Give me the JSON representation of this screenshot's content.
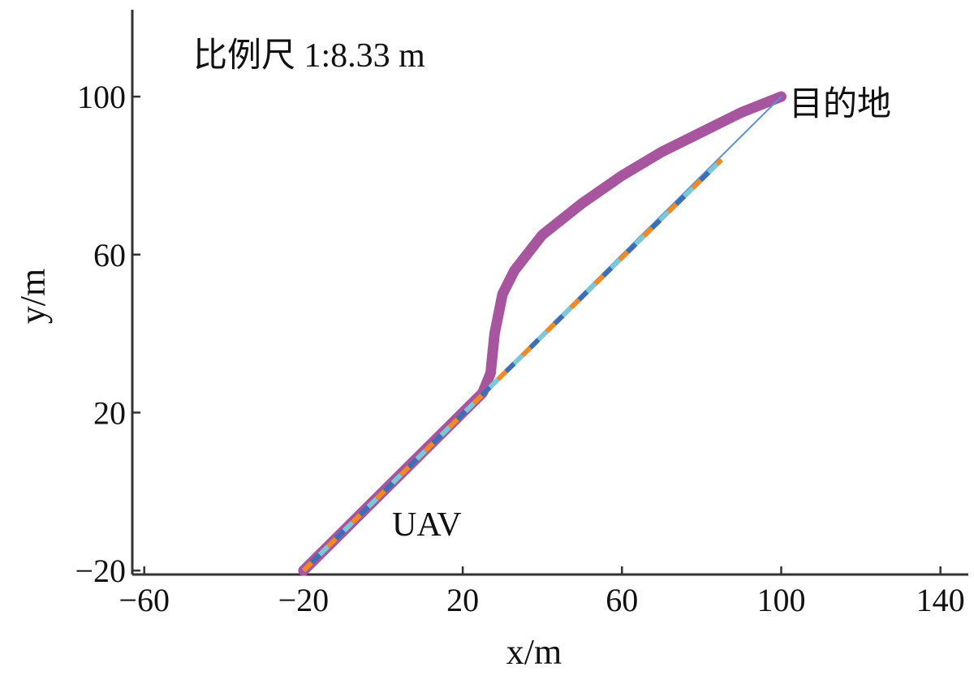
{
  "chart_data": {
    "type": "line",
    "xlabel": "x/m",
    "ylabel": "y/m",
    "xlim": [
      -63,
      147
    ],
    "ylim": [
      -21,
      122
    ],
    "xticks": [
      -60,
      -20,
      20,
      60,
      100,
      140
    ],
    "yticks": [
      -20,
      20,
      60,
      100
    ],
    "grid": false,
    "annotations": {
      "scale": "比例尺 1:8.33 m",
      "start_label": "UAV",
      "end_label": "目的地"
    },
    "series": [
      {
        "color": "#a855a0",
        "style": "thick",
        "x": [
          -20,
          -10,
          0,
          10,
          20,
          25,
          27,
          28,
          30,
          33,
          40,
          50,
          60,
          70,
          80,
          90,
          100
        ],
        "y": [
          -20,
          -10,
          0,
          10,
          20,
          25,
          30,
          40,
          50,
          56,
          65,
          73,
          80,
          86,
          91,
          96,
          100
        ]
      },
      {
        "colors": [
          "#f08a24",
          "#3c6fb4",
          "#7cc9d6"
        ],
        "style": "dashed-multicolor",
        "x": [
          -20,
          85
        ],
        "y": [
          -20,
          84
        ]
      },
      {
        "color": "#5b8fd6",
        "style": "thin",
        "x": [
          -20,
          100
        ],
        "y": [
          -20,
          100
        ]
      }
    ]
  }
}
